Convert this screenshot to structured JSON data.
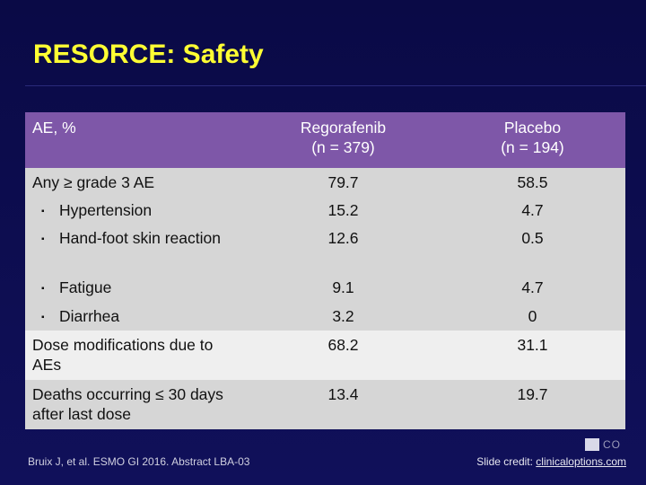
{
  "title": "RESORCE: Safety",
  "table": {
    "headers": {
      "ae": "AE, %",
      "regorafenib_line1": "Regorafenib",
      "regorafenib_line2": "(n = 379)",
      "placebo_line1": "Placebo",
      "placebo_line2": "(n = 194)"
    },
    "rows": [
      {
        "label": "Any ≥ grade 3 AE",
        "reg": "79.7",
        "pla": "58.5"
      },
      {
        "label": "Hypertension",
        "reg": "15.2",
        "pla": "4.7"
      },
      {
        "label": "Hand-foot skin reaction",
        "reg": "12.6",
        "pla": "0.5"
      },
      {
        "label": "Fatigue",
        "reg": "9.1",
        "pla": "4.7"
      },
      {
        "label": "Diarrhea",
        "reg": "3.2",
        "pla": "0"
      },
      {
        "label": "Dose modifications due to AEs",
        "reg": "68.2",
        "pla": "31.1"
      },
      {
        "label": "Deaths occurring ≤ 30 days after last dose",
        "reg": "13.4",
        "pla": "19.7"
      }
    ],
    "bullet": "▪"
  },
  "footer": {
    "citation": "Bruix J, et al. ESMO GI 2016. Abstract LBA-03",
    "credit_prefix": "Slide credit: ",
    "credit_link": "clinicaloptions.com",
    "logo_text": "CO"
  },
  "colors": {
    "background": "#0d0d4a",
    "title": "#ffff33",
    "header_bg": "#7e57a8",
    "row_shade": "#d6d6d6",
    "row_light": "#efefef"
  }
}
